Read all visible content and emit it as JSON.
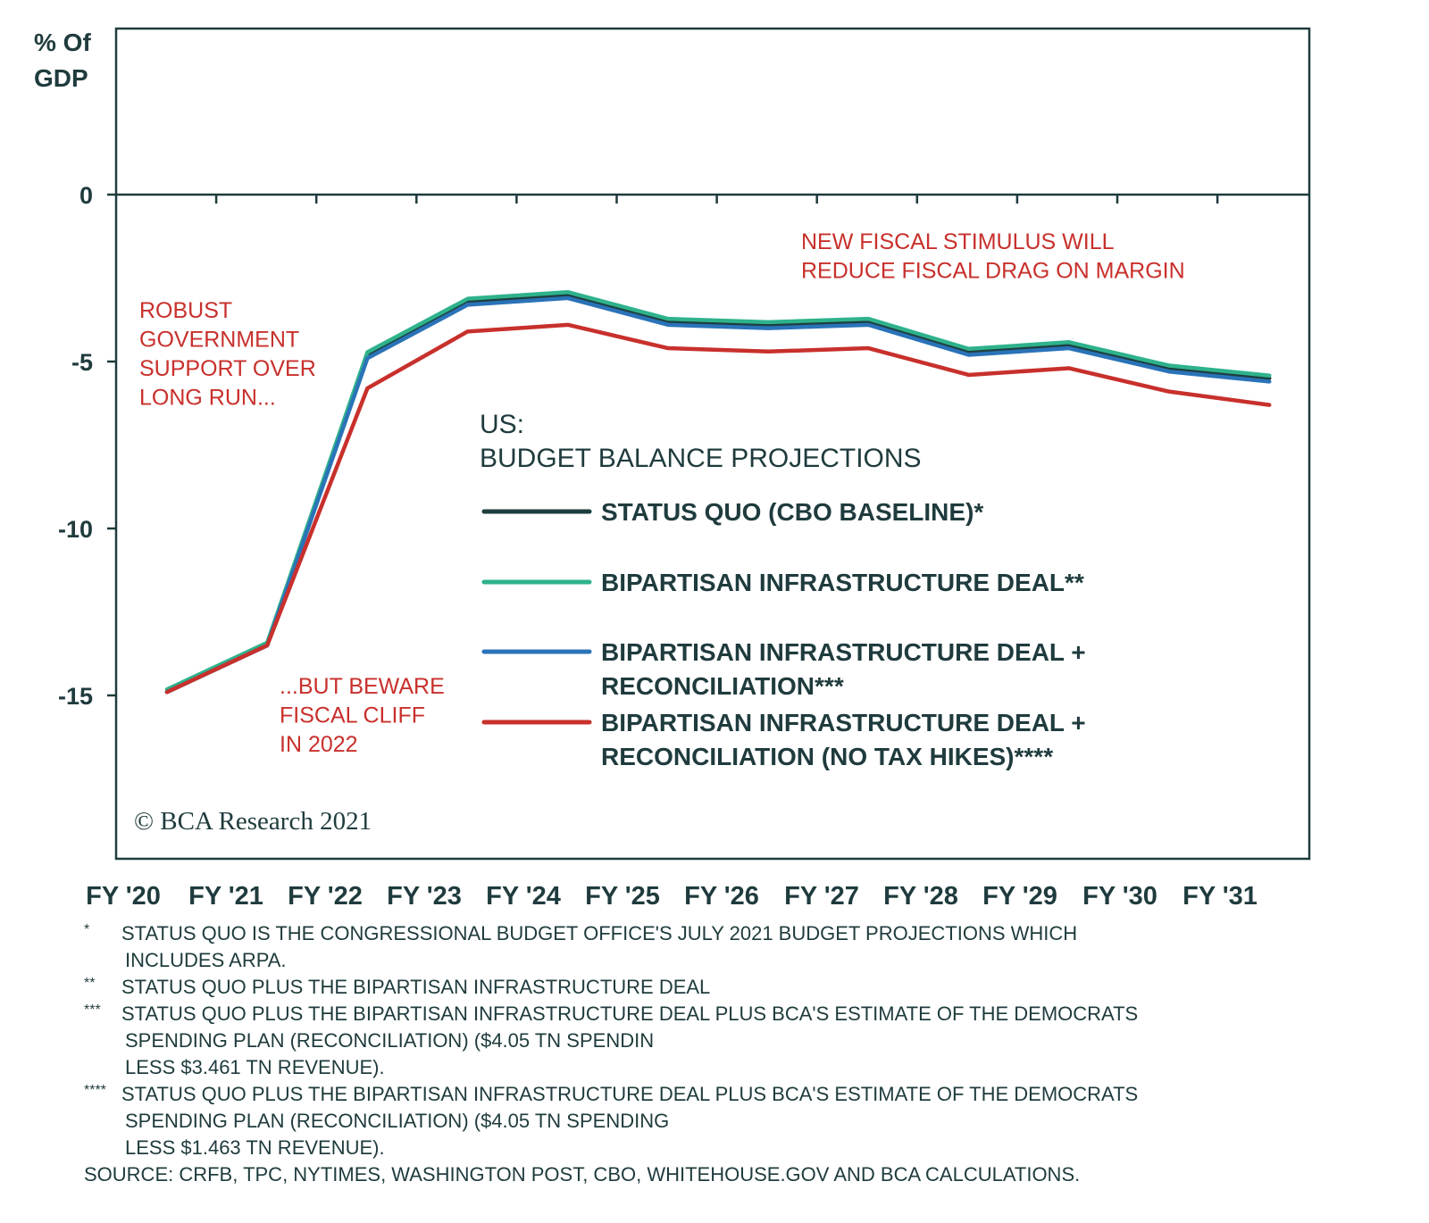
{
  "chart_data": {
    "type": "line",
    "ylabel": "% Of GDP",
    "ylabel_lines": [
      "% Of",
      "GDP"
    ],
    "ylim": [
      -20,
      5
    ],
    "yticks": [
      0,
      -5,
      -10,
      -15
    ],
    "ytick_labels": [
      "0",
      "-5",
      "-10",
      "-15"
    ],
    "categories": [
      "FY '20",
      "FY '21",
      "FY '22",
      "FY '23",
      "FY '24",
      "FY '25",
      "FY '26",
      "FY '27",
      "FY '28",
      "FY '29",
      "FY '30",
      "FY '31"
    ],
    "legend_title": [
      "US:",
      "BUDGET BALANCE PROJECTIONS"
    ],
    "series": [
      {
        "name": "STATUS QUO (CBO BASELINE)*",
        "name_lines": [
          "STATUS QUO (CBO BASELINE)*"
        ],
        "color": "#1d3e3f",
        "values": [
          -14.9,
          -13.5,
          -4.8,
          -3.2,
          -3.0,
          -3.8,
          -3.9,
          -3.8,
          -4.7,
          -4.5,
          -5.2,
          -5.5
        ]
      },
      {
        "name": "BIPARTISAN INFRASTRUCTURE DEAL**",
        "name_lines": [
          "BIPARTISAN INFRASTRUCTURE DEAL**"
        ],
        "color": "#2eb28c",
        "values": [
          -14.9,
          -13.5,
          -4.8,
          -3.2,
          -3.0,
          -3.8,
          -3.9,
          -3.8,
          -4.7,
          -4.5,
          -5.2,
          -5.5
        ]
      },
      {
        "name": "BIPARTISAN INFRASTRUCTURE DEAL + RECONCILIATION***",
        "name_lines": [
          "BIPARTISAN INFRASTRUCTURE DEAL +",
          "RECONCILIATION***"
        ],
        "color": "#2a73b8",
        "values": [
          -14.9,
          -13.5,
          -4.9,
          -3.3,
          -3.1,
          -3.9,
          -4.0,
          -3.9,
          -4.8,
          -4.6,
          -5.3,
          -5.6
        ]
      },
      {
        "name": "BIPARTISAN INFRASTRUCTURE DEAL + RECONCILIATION (NO TAX HIKES)****",
        "name_lines": [
          "BIPARTISAN INFRASTRUCTURE DEAL +",
          "RECONCILIATION (NO TAX HIKES)****"
        ],
        "color": "#c8302c",
        "values": [
          -14.9,
          -13.5,
          -5.8,
          -4.1,
          -3.9,
          -4.6,
          -4.7,
          -4.6,
          -5.4,
          -5.2,
          -5.9,
          -6.3
        ]
      }
    ],
    "annotations": [
      {
        "lines": [
          "ROBUST",
          "GOVERNMENT",
          "SUPPORT OVER",
          "LONG RUN..."
        ]
      },
      {
        "lines": [
          "...BUT BEWARE",
          "FISCAL CLIFF",
          "IN 2022"
        ]
      },
      {
        "lines": [
          "NEW FISCAL STIMULUS WILL",
          "REDUCE FISCAL DRAG ON MARGIN"
        ]
      }
    ],
    "copyright": "© BCA Research 2021",
    "grid": false,
    "legend_position": "center"
  },
  "notes": [
    {
      "mark": "*",
      "lines": [
        "STATUS QUO IS THE CONGRESSIONAL BUDGET OFFICE'S JULY 2021 BUDGET PROJECTIONS WHICH",
        "INCLUDES ARPA."
      ]
    },
    {
      "mark": "**",
      "lines": [
        "STATUS QUO PLUS THE BIPARTISAN INFRASTRUCTURE DEAL"
      ]
    },
    {
      "mark": "***",
      "lines": [
        "STATUS QUO PLUS THE BIPARTISAN INFRASTRUCTURE DEAL PLUS BCA'S ESTIMATE OF THE DEMOCRATS",
        "SPENDING PLAN (RECONCILIATION) ($4.05 TN SPENDIN",
        "LESS $3.461 TN REVENUE)."
      ]
    },
    {
      "mark": "****",
      "lines": [
        "STATUS QUO PLUS THE BIPARTISAN INFRASTRUCTURE DEAL PLUS BCA'S ESTIMATE OF THE DEMOCRATS",
        "SPENDING PLAN (RECONCILIATION) ($4.05 TN SPENDING",
        "LESS $1.463 TN REVENUE)."
      ]
    }
  ],
  "source": "SOURCE: CRFB, TPC, NYTIMES, WASHINGTON POST, CBO, WHITEHOUSE.GOV AND BCA CALCULATIONS."
}
